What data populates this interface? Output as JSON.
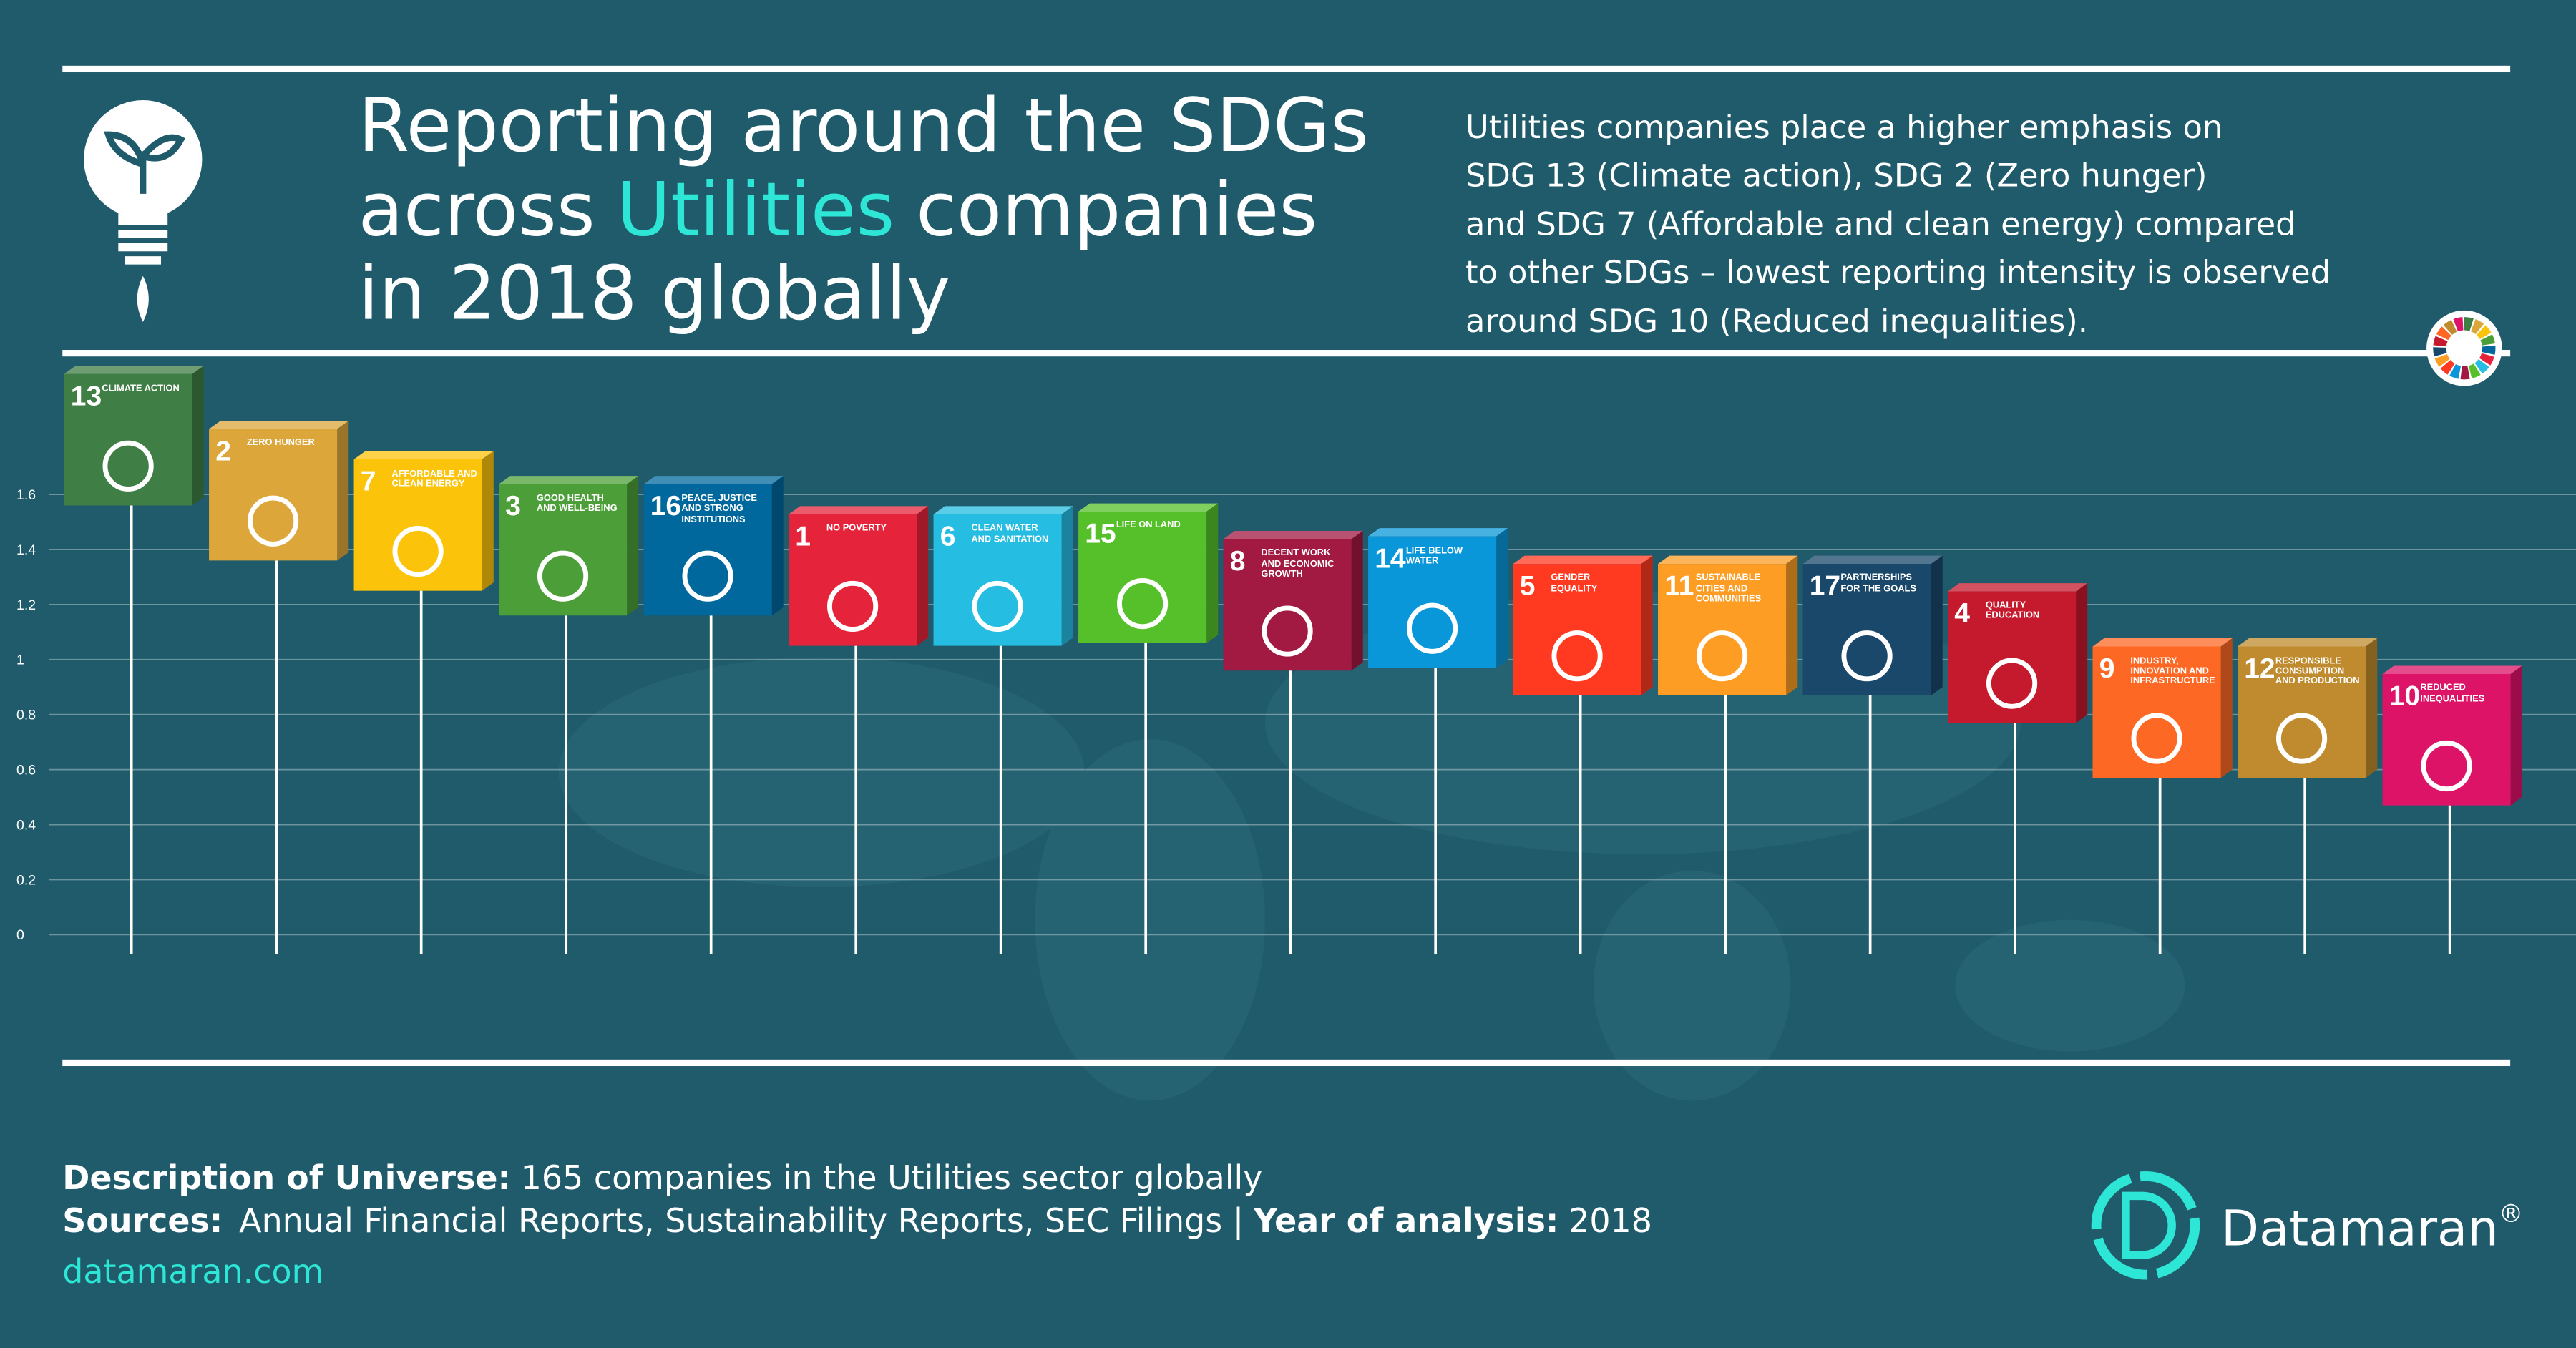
{
  "header": {
    "title_line1": "Reporting around the SDGs",
    "title_line2_start": "across",
    "title_highlight": "Utilities",
    "title_line2_end": "companies",
    "title_line3": "in 2018 globally"
  },
  "summary": [
    "Utilities companies place a higher emphasis on",
    "SDG 13 (Climate action), SDG 2 (Zero hunger)",
    "and SDG 7 (Affordable and clean energy) compared",
    "to other SDGs – lowest reporting intensity is observed",
    "around SDG 10 (Reduced inequalities)."
  ],
  "chart_data": {
    "type": "lollipop",
    "categories": [
      "13",
      "2",
      "7",
      "3",
      "16",
      "1",
      "6",
      "15",
      "8",
      "14",
      "5",
      "11",
      "17",
      "4",
      "9",
      "12",
      "10"
    ],
    "category_labels": [
      "CLIMATE ACTION",
      "ZERO HUNGER",
      "AFFORDABLE AND CLEAN ENERGY",
      "GOOD HEALTH AND WELL-BEING",
      "PEACE, JUSTICE AND STRONG INSTITUTIONS",
      "NO POVERTY",
      "CLEAN WATER AND SANITATION",
      "LIFE ON LAND",
      "DECENT WORK AND ECONOMIC GROWTH",
      "LIFE BELOW WATER",
      "GENDER EQUALITY",
      "SUSTAINABLE CITIES AND COMMUNITIES",
      "PARTNERSHIPS FOR THE GOALS",
      "QUALITY EDUCATION",
      "INDUSTRY, INNOVATION AND INFRASTRUCTURE",
      "RESPONSIBLE CONSUMPTION AND PRODUCTION",
      "REDUCED INEQUALITIES"
    ],
    "colors": [
      "#3f7e44",
      "#dda63a",
      "#fcc30b",
      "#4c9f38",
      "#00689d",
      "#e5243b",
      "#26bde2",
      "#56c02b",
      "#a21942",
      "#0a97d9",
      "#ff3a21",
      "#fd9d24",
      "#19486a",
      "#c5192d",
      "#fd6925",
      "#bf8b2e",
      "#dd1367"
    ],
    "values": [
      1.56,
      1.36,
      1.25,
      1.16,
      1.16,
      1.05,
      1.05,
      1.06,
      0.96,
      0.97,
      0.87,
      0.87,
      0.87,
      0.77,
      0.57,
      0.57,
      0.47
    ],
    "ylim": [
      0,
      1.6
    ],
    "yticks": [
      0,
      0.2,
      0.4,
      0.6,
      0.8,
      1,
      1.2,
      1.4,
      1.6
    ],
    "grid": true
  },
  "footer": {
    "universe_label": "Description of Universe:",
    "universe_text": "165 companies in the Utilities sector globally",
    "sources_label": "Sources:",
    "sources_text": "Annual Financial Reports, Sustainability Reports, SEC Filings |",
    "year_label": "Year of analysis:",
    "year_text": "2018",
    "website": "datamaran.com"
  },
  "logo": {
    "name": "Datamaran",
    "mark": "®"
  }
}
